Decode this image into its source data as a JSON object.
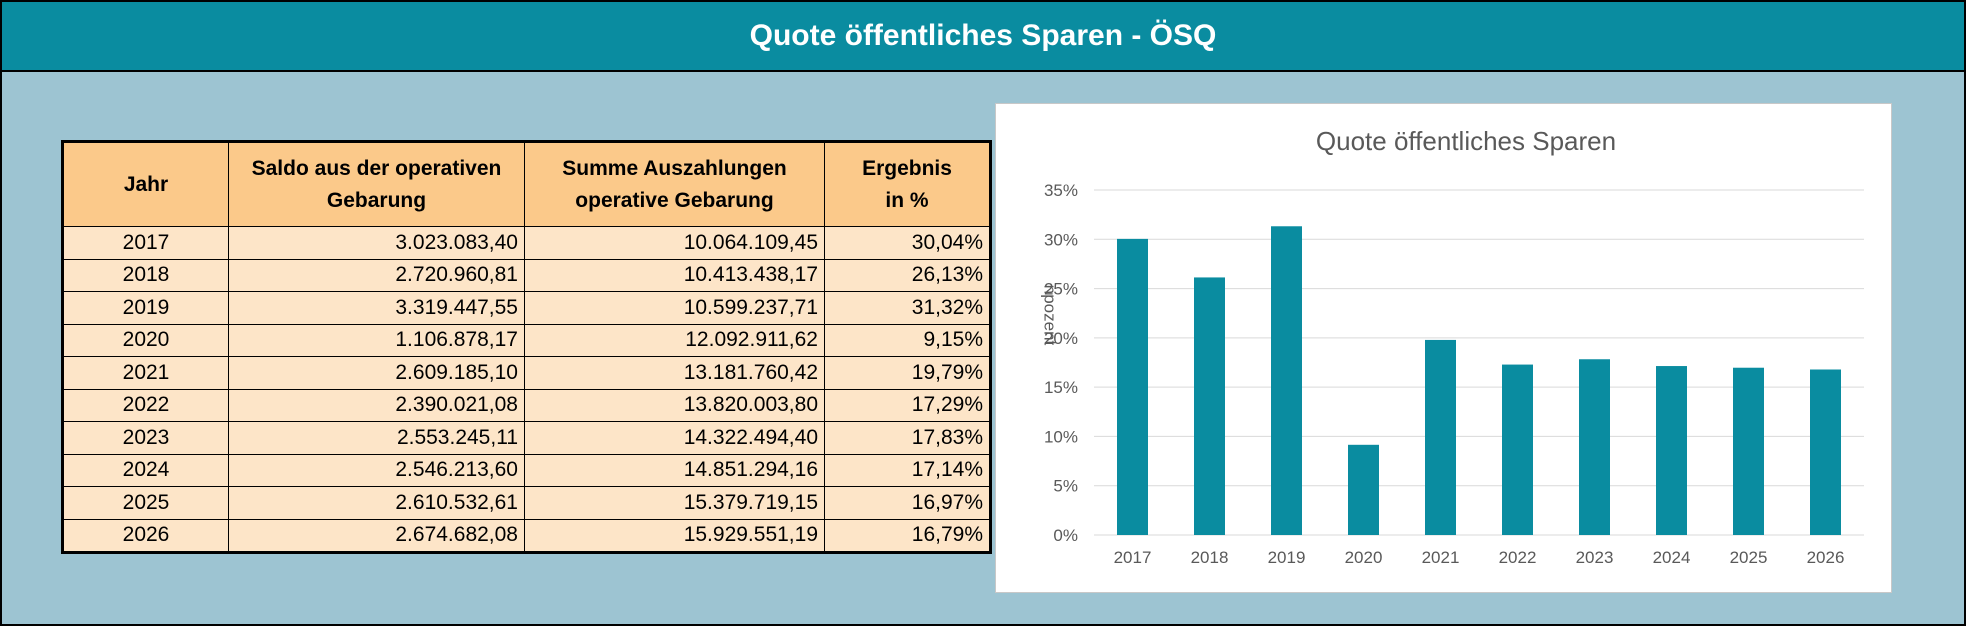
{
  "header": {
    "title": "Quote öffentliches Sparen - ÖSQ"
  },
  "table": {
    "headers": [
      [
        "Jahr"
      ],
      [
        "Saldo aus der operativen",
        "Gebarung"
      ],
      [
        "Summe Auszahlungen",
        "operative Gebarung"
      ],
      [
        "Ergebnis",
        "in %"
      ]
    ],
    "rows": [
      [
        "2017",
        "3.023.083,40",
        "10.064.109,45",
        "30,04%"
      ],
      [
        "2018",
        "2.720.960,81",
        "10.413.438,17",
        "26,13%"
      ],
      [
        "2019",
        "3.319.447,55",
        "10.599.237,71",
        "31,32%"
      ],
      [
        "2020",
        "1.106.878,17",
        "12.092.911,62",
        "9,15%"
      ],
      [
        "2021",
        "2.609.185,10",
        "13.181.760,42",
        "19,79%"
      ],
      [
        "2022",
        "2.390.021,08",
        "13.820.003,80",
        "17,29%"
      ],
      [
        "2023",
        "2.553.245,11",
        "14.322.494,40",
        "17,83%"
      ],
      [
        "2024",
        "2.546.213,60",
        "14.851.294,16",
        "17,14%"
      ],
      [
        "2025",
        "2.610.532,61",
        "15.379.719,15",
        "16,97%"
      ],
      [
        "2026",
        "2.674.682,08",
        "15.929.551,19",
        "16,79%"
      ]
    ]
  },
  "chart_data": {
    "type": "bar",
    "title": "Quote öffentliches Sparen",
    "categories": [
      "2017",
      "2018",
      "2019",
      "2020",
      "2021",
      "2022",
      "2023",
      "2024",
      "2025",
      "2026"
    ],
    "values": [
      30.04,
      26.13,
      31.32,
      9.15,
      19.79,
      17.29,
      17.83,
      17.14,
      16.97,
      16.79
    ],
    "ylim": [
      0,
      35
    ],
    "yticks": [
      0,
      5,
      10,
      15,
      20,
      25,
      30,
      35
    ],
    "ytick_labels": [
      "0%",
      "5%",
      "10%",
      "15%",
      "20%",
      "25%",
      "30%",
      "35%"
    ],
    "ylabel": "n p o z e n t",
    "xlabel": "",
    "grid": true,
    "legend": "none",
    "colors": {
      "bar": "#0a8ca0",
      "grid": "#d9d9d9",
      "axis_text": "#595959"
    }
  }
}
